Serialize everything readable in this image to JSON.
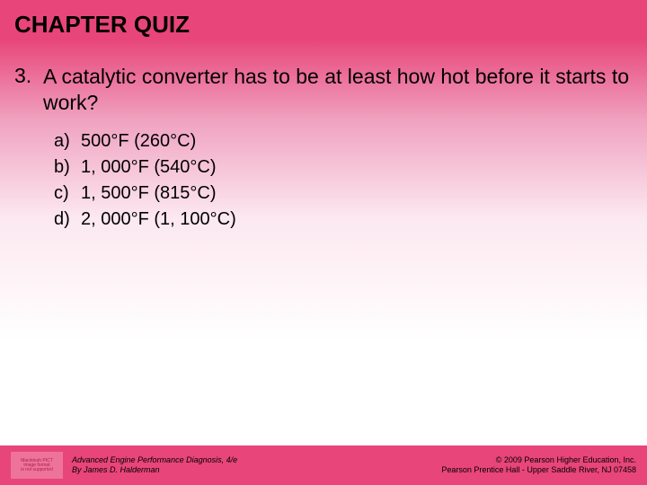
{
  "title": {
    "text": "CHAPTER QUIZ",
    "fontsize": 26
  },
  "question": {
    "number": "3.",
    "text": "A catalytic converter has to be at least how hot before it starts to work?",
    "fontsize": 23
  },
  "options": {
    "fontsize": 20,
    "items": [
      {
        "label": "a)",
        "text": "500°F (260°C)"
      },
      {
        "label": "b)",
        "text": "1, 000°F (540°C)"
      },
      {
        "label": "c)",
        "text": "1, 500°F (815°C)"
      },
      {
        "label": "d)",
        "text": "2, 000°F (1, 100°C)"
      }
    ]
  },
  "footer": {
    "fontsize": 9,
    "logo_text1": "Macintosh PICT",
    "logo_text2": "image format",
    "logo_text3": "is not supported",
    "left_line1": "Advanced Engine Performance Diagnosis, 4/e",
    "left_line2": "By James D. Halderman",
    "right_line1": "© 2009 Pearson Higher Education, Inc.",
    "right_line2": "Pearson Prentice Hall - Upper Saddle River, NJ 07458"
  },
  "colors": {
    "gradient_top": "#e8457a",
    "gradient_mid": "#f0a3c0",
    "gradient_bottom": "#ffffff",
    "footer_bg": "#e8457a",
    "text": "#000000"
  }
}
